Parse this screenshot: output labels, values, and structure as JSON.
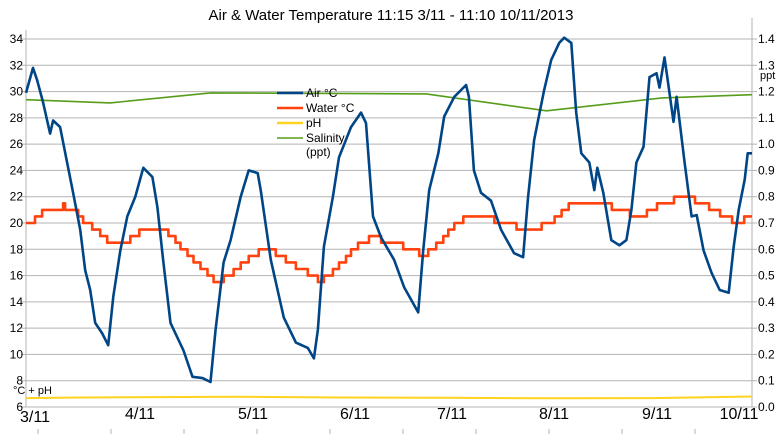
{
  "chart_data": {
    "type": "line",
    "title": "Air & Water Temperature 11:15 3/11 - 11:10 10/11/2013",
    "left_axis": {
      "label": "°C + pH",
      "ylim": [
        6,
        34
      ],
      "ticks": [
        6,
        8,
        10,
        12,
        14,
        16,
        18,
        20,
        22,
        24,
        26,
        28,
        30,
        32,
        34
      ]
    },
    "right_axis": {
      "label": "ppt",
      "ylim": [
        0.0,
        1.4
      ],
      "ticks": [
        "0.0",
        "0.1",
        "0.2",
        "0.3",
        "0.4",
        "0.5",
        "0.6",
        "0.7",
        "0.8",
        "0.9",
        "1.0",
        "1.1",
        "1.2",
        "1.3",
        "1.4"
      ]
    },
    "x_axis": {
      "range": [
        "2013-11-03 11:15",
        "2013-11-10 11:10"
      ],
      "tick_labels": [
        "3/11",
        "4/11",
        "5/11",
        "6/11",
        "7/11",
        "8/11",
        "9/11",
        "10/11"
      ]
    },
    "grid": true,
    "legend": {
      "placement": "top-center",
      "entries": [
        "Air °C",
        "Water °C",
        "pH",
        "Salinity",
        "(ppt)"
      ]
    },
    "series": [
      {
        "name": "Air °C",
        "axis": "left",
        "color": "#004586",
        "step": false,
        "points": [
          [
            "2013-11-03 11:15",
            29.9
          ],
          [
            "2013-11-03 12:52",
            31.8
          ],
          [
            "2013-11-03 13:48",
            30.9
          ],
          [
            "2013-11-03 15:11",
            29.2
          ],
          [
            "2013-11-03 16:49",
            26.8
          ],
          [
            "2013-11-03 17:31",
            27.8
          ],
          [
            "2013-11-03 19:08",
            27.3
          ],
          [
            "2013-11-03 20:46",
            24.6
          ],
          [
            "2013-11-03 22:09",
            22.3
          ],
          [
            "2013-11-03 23:47",
            19.5
          ],
          [
            "2013-11-04 00:56",
            16.4
          ],
          [
            "2013-11-04 02:06",
            14.9
          ],
          [
            "2013-11-04 03:16",
            12.4
          ],
          [
            "2013-11-04 04:53",
            11.6
          ],
          [
            "2013-11-04 06:16",
            10.7
          ],
          [
            "2013-11-04 07:26",
            14.4
          ],
          [
            "2013-11-04 09:04",
            17.9
          ],
          [
            "2013-11-04 10:41",
            20.5
          ],
          [
            "2013-11-04 12:32",
            22.0
          ],
          [
            "2013-11-04 14:23",
            24.2
          ],
          [
            "2013-11-04 16:29",
            23.5
          ],
          [
            "2013-11-04 17:38",
            21.2
          ],
          [
            "2013-11-04 19:02",
            17.0
          ],
          [
            "2013-11-04 20:40",
            12.4
          ],
          [
            "2013-11-04 23:40",
            10.3
          ],
          [
            "2013-11-05 01:46",
            8.3
          ],
          [
            "2013-11-05 04:05",
            8.2
          ],
          [
            "2013-11-05 05:56",
            7.9
          ],
          [
            "2013-11-05 07:06",
            11.9
          ],
          [
            "2013-11-05 08:57",
            17.0
          ],
          [
            "2013-11-05 10:35",
            18.7
          ],
          [
            "2013-11-05 12:54",
            22.0
          ],
          [
            "2013-11-05 14:45",
            24.0
          ],
          [
            "2013-11-05 16:50",
            23.8
          ],
          [
            "2013-11-05 17:32",
            22.5
          ],
          [
            "2013-11-05 19:52",
            17.2
          ],
          [
            "2013-11-05 22:52",
            12.8
          ],
          [
            "2013-11-06 01:40",
            10.9
          ],
          [
            "2013-11-06 04:26",
            10.5
          ],
          [
            "2013-11-06 05:50",
            9.7
          ],
          [
            "2013-11-06 06:46",
            11.9
          ],
          [
            "2013-11-06 08:09",
            18.2
          ],
          [
            "2013-11-06 10:14",
            22.0
          ],
          [
            "2013-11-06 11:38",
            25.0
          ],
          [
            "2013-11-06 14:25",
            27.3
          ],
          [
            "2013-11-06 16:44",
            28.4
          ],
          [
            "2013-11-06 17:54",
            27.6
          ],
          [
            "2013-11-06 19:31",
            20.5
          ],
          [
            "2013-11-06 21:23",
            18.9
          ],
          [
            "2013-11-07 00:23",
            17.2
          ],
          [
            "2013-11-07 02:43",
            15.1
          ],
          [
            "2013-11-07 05:58",
            13.2
          ],
          [
            "2013-11-07 07:07",
            17.9
          ],
          [
            "2013-11-07 08:31",
            22.5
          ],
          [
            "2013-11-07 10:36",
            25.3
          ],
          [
            "2013-11-07 11:59",
            28.1
          ],
          [
            "2013-11-07 14:19",
            29.6
          ],
          [
            "2013-11-07 17:02",
            30.5
          ],
          [
            "2013-11-07 17:41",
            29.6
          ],
          [
            "2013-11-07 18:51",
            24.0
          ],
          [
            "2013-11-07 20:29",
            22.3
          ],
          [
            "2013-11-07 22:48",
            21.7
          ],
          [
            "2013-11-08 01:07",
            19.5
          ],
          [
            "2013-11-08 04:08",
            17.7
          ],
          [
            "2013-11-08 06:13",
            17.4
          ],
          [
            "2013-11-08 07:23",
            22.0
          ],
          [
            "2013-11-08 08:46",
            26.3
          ],
          [
            "2013-11-08 11:05",
            30.1
          ],
          [
            "2013-11-08 12:43",
            32.4
          ],
          [
            "2013-11-08 14:34",
            33.7
          ],
          [
            "2013-11-08 15:44",
            34.1
          ],
          [
            "2013-11-08 17:22",
            33.7
          ],
          [
            "2013-11-08 18:31",
            28.4
          ],
          [
            "2013-11-08 19:41",
            25.3
          ],
          [
            "2013-11-08 21:32",
            24.6
          ],
          [
            "2013-11-08 22:41",
            22.5
          ],
          [
            "2013-11-08 23:23",
            24.2
          ],
          [
            "2013-11-09 00:47",
            22.3
          ],
          [
            "2013-11-09 02:38",
            18.7
          ],
          [
            "2013-11-09 04:30",
            18.3
          ],
          [
            "2013-11-09 06:07",
            18.7
          ],
          [
            "2013-11-09 07:17",
            21.0
          ],
          [
            "2013-11-09 08:26",
            24.6
          ],
          [
            "2013-11-09 10:04",
            25.8
          ],
          [
            "2013-11-09 11:27",
            31.1
          ],
          [
            "2013-11-09 13:05",
            31.4
          ],
          [
            "2013-11-09 13:46",
            30.3
          ],
          [
            "2013-11-09 14:56",
            32.6
          ],
          [
            "2013-11-09 16:05",
            29.9
          ],
          [
            "2013-11-09 17:01",
            27.7
          ],
          [
            "2013-11-09 17:43",
            29.6
          ],
          [
            "2013-11-09 19:34",
            24.6
          ],
          [
            "2013-11-09 21:12",
            20.5
          ],
          [
            "2013-11-09 22:22",
            20.6
          ],
          [
            "2013-11-09 23:59",
            17.9
          ],
          [
            "2013-11-10 01:50",
            16.2
          ],
          [
            "2013-11-10 03:42",
            14.9
          ],
          [
            "2013-11-10 05:47",
            14.7
          ],
          [
            "2013-11-10 06:56",
            18.2
          ],
          [
            "2013-11-10 08:06",
            21.0
          ],
          [
            "2013-11-10 09:29",
            23.3
          ],
          [
            "2013-11-10 10:11",
            25.3
          ],
          [
            "2013-11-10 11:10",
            25.3
          ]
        ]
      },
      {
        "name": "Water °C",
        "axis": "left",
        "color": "#ff420e",
        "step": true,
        "points": [
          [
            "2013-11-03 11:15",
            20.0
          ],
          [
            "2013-11-03 13:20",
            20.5
          ],
          [
            "2013-11-03 14:58",
            21.0
          ],
          [
            "2013-11-03 19:50",
            21.5
          ],
          [
            "2013-11-03 20:18",
            21.0
          ],
          [
            "2013-11-03 23:19",
            20.5
          ],
          [
            "2013-11-04 00:28",
            20.0
          ],
          [
            "2013-11-04 02:34",
            19.5
          ],
          [
            "2013-11-04 04:25",
            19.0
          ],
          [
            "2013-11-04 06:02",
            18.5
          ],
          [
            "2013-11-04 11:23",
            19.0
          ],
          [
            "2013-11-04 13:28",
            19.5
          ],
          [
            "2013-11-04 20:11",
            19.0
          ],
          [
            "2013-11-04 21:49",
            18.5
          ],
          [
            "2013-11-04 22:59",
            18.0
          ],
          [
            "2013-11-05 00:36",
            17.5
          ],
          [
            "2013-11-05 01:59",
            17.0
          ],
          [
            "2013-11-05 03:37",
            16.5
          ],
          [
            "2013-11-05 05:14",
            16.0
          ],
          [
            "2013-11-05 06:38",
            15.5
          ],
          [
            "2013-11-05 08:58",
            16.0
          ],
          [
            "2013-11-05 11:16",
            16.5
          ],
          [
            "2013-11-05 12:54",
            17.0
          ],
          [
            "2013-11-05 14:45",
            17.5
          ],
          [
            "2013-11-05 17:04",
            18.0
          ],
          [
            "2013-11-05 21:01",
            17.5
          ],
          [
            "2013-11-05 23:20",
            17.0
          ],
          [
            "2013-11-06 01:40",
            16.5
          ],
          [
            "2013-11-06 04:26",
            16.0
          ],
          [
            "2013-11-06 06:46",
            15.5
          ],
          [
            "2013-11-06 08:09",
            16.0
          ],
          [
            "2013-11-06 10:14",
            16.5
          ],
          [
            "2013-11-06 11:38",
            17.0
          ],
          [
            "2013-11-06 13:16",
            17.5
          ],
          [
            "2013-11-06 14:25",
            18.0
          ],
          [
            "2013-11-06 16:02",
            18.5
          ],
          [
            "2013-11-06 18:35",
            19.0
          ],
          [
            "2013-11-06 21:23",
            18.5
          ],
          [
            "2013-11-07 02:29",
            18.0
          ],
          [
            "2013-11-07 06:11",
            17.5
          ],
          [
            "2013-11-07 08:17",
            18.0
          ],
          [
            "2013-11-07 10:08",
            18.5
          ],
          [
            "2013-11-07 11:46",
            19.0
          ],
          [
            "2013-11-07 12:55",
            19.5
          ],
          [
            "2013-11-07 14:19",
            20.0
          ],
          [
            "2013-11-07 16:24",
            20.5
          ],
          [
            "2013-11-07 23:35",
            20.0
          ],
          [
            "2013-11-08 04:42",
            19.5
          ],
          [
            "2013-11-08 10:30",
            20.0
          ],
          [
            "2013-11-08 13:31",
            20.5
          ],
          [
            "2013-11-08 15:08",
            21.0
          ],
          [
            "2013-11-08 16:46",
            21.5
          ],
          [
            "2013-11-09 02:44",
            21.0
          ],
          [
            "2013-11-09 06:55",
            20.5
          ],
          [
            "2013-11-09 10:52",
            21.0
          ],
          [
            "2013-11-09 13:11",
            21.5
          ],
          [
            "2013-11-09 17:07",
            22.0
          ],
          [
            "2013-11-09 21:59",
            21.5
          ],
          [
            "2013-11-10 01:14",
            21.0
          ],
          [
            "2013-11-10 03:47",
            20.5
          ],
          [
            "2013-11-10 06:34",
            20.0
          ],
          [
            "2013-11-10 09:22",
            20.5
          ],
          [
            "2013-11-10 11:10",
            20.5
          ]
        ]
      },
      {
        "name": "pH",
        "axis": "left",
        "color": "#ffd320",
        "step": false,
        "points": [
          [
            "2013-11-03 11:15",
            6.68
          ],
          [
            "2013-11-04 00:00",
            6.72
          ],
          [
            "2013-11-05 12:00",
            6.78
          ],
          [
            "2013-11-06 12:00",
            6.72
          ],
          [
            "2013-11-07 12:00",
            6.7
          ],
          [
            "2013-11-08 12:00",
            6.66
          ],
          [
            "2013-11-09 12:00",
            6.68
          ],
          [
            "2013-11-10 11:10",
            6.8
          ]
        ]
      },
      {
        "name": "Salinity (ppt)",
        "axis": "right",
        "color": "#579d1c",
        "step": false,
        "points": [
          [
            "2013-11-03 11:15",
            1.169
          ],
          [
            "2013-11-04 06:44",
            1.157
          ],
          [
            "2013-11-05 05:56",
            1.195
          ],
          [
            "2013-11-07 07:49",
            1.191
          ],
          [
            "2013-11-08 11:40",
            1.127
          ],
          [
            "2013-11-09 14:20",
            1.176
          ],
          [
            "2013-11-10 11:10",
            1.188
          ]
        ]
      }
    ]
  }
}
